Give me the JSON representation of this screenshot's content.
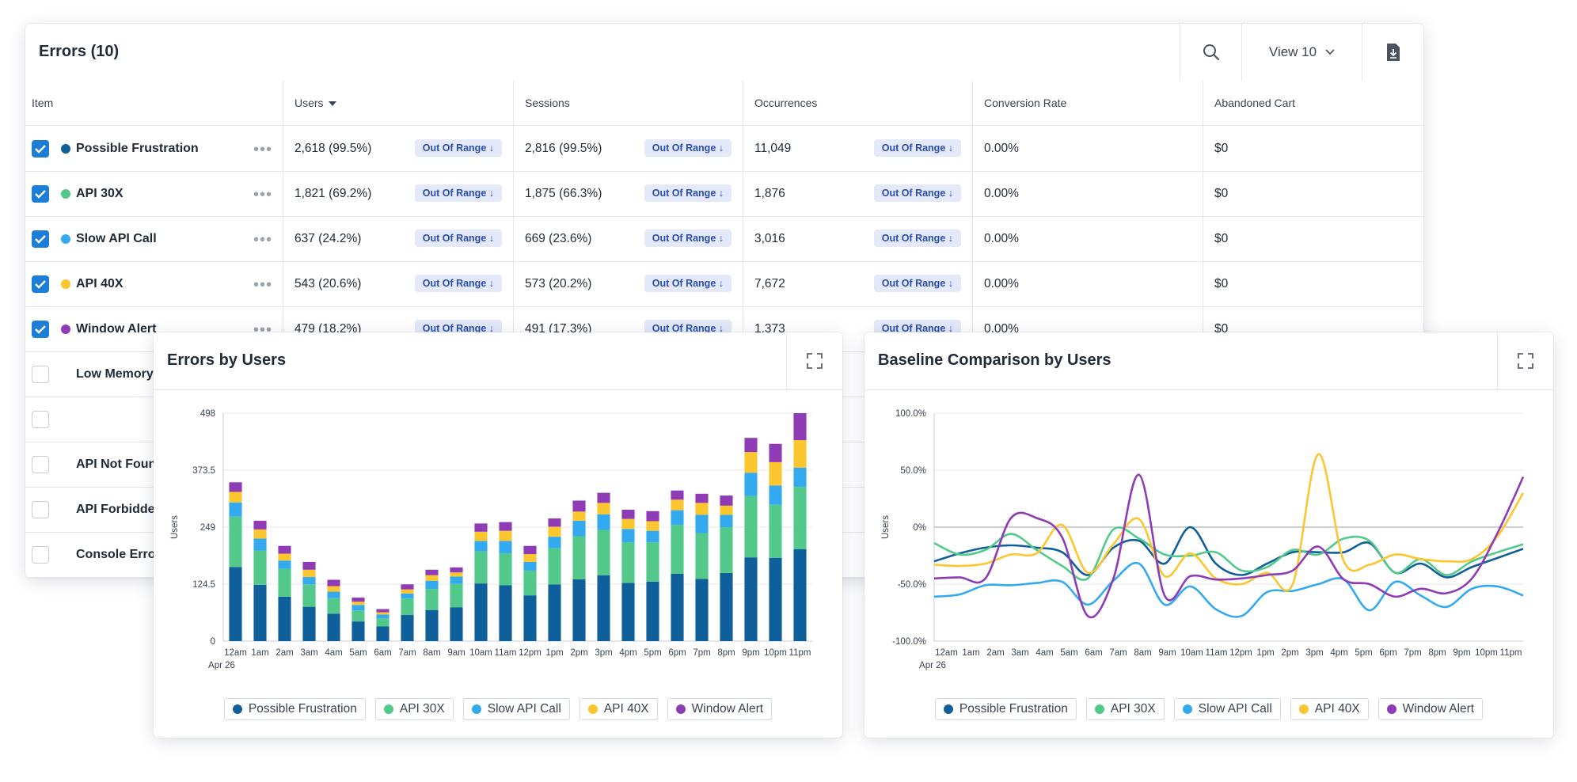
{
  "table": {
    "title": "Errors (10)",
    "view_label": "View 10",
    "columns": [
      "Item",
      "Users",
      "Sessions",
      "Occurrences",
      "Conversion Rate",
      "Abandoned Cart"
    ],
    "badge_label": "Out Of Range ↓",
    "rows": [
      {
        "name": "Possible Frustration",
        "checked": true,
        "color": "#0f5f9b",
        "users": "2,618 (99.5%)",
        "sessions": "2,816 (99.5%)",
        "occurrences": "11,049",
        "conversion": "0.00%",
        "abandoned": "$0"
      },
      {
        "name": "API 30X",
        "checked": true,
        "color": "#52c98a",
        "users": "1,821 (69.2%)",
        "sessions": "1,875 (66.3%)",
        "occurrences": "1,876",
        "conversion": "0.00%",
        "abandoned": "$0"
      },
      {
        "name": "Slow API Call",
        "checked": true,
        "color": "#33aaf0",
        "users": "637 (24.2%)",
        "sessions": "669 (23.6%)",
        "occurrences": "3,016",
        "conversion": "0.00%",
        "abandoned": "$0"
      },
      {
        "name": "API 40X",
        "checked": true,
        "color": "#fbc62e",
        "users": "543 (20.6%)",
        "sessions": "573 (20.2%)",
        "occurrences": "7,672",
        "conversion": "0.00%",
        "abandoned": "$0"
      },
      {
        "name": "Window Alert",
        "checked": true,
        "color": "#8e3bb5",
        "users": "479 (18.2%)",
        "sessions": "491 (17.3%)",
        "occurrences": "1,373",
        "conversion": "0.00%",
        "abandoned": "$0"
      },
      {
        "name": "Low Memory",
        "checked": false
      },
      {
        "name": "",
        "checked": false
      },
      {
        "name": "API Not Foun",
        "checked": false
      },
      {
        "name": "API Forbidde",
        "checked": false
      },
      {
        "name": "Console Error",
        "checked": false
      }
    ]
  },
  "legend": [
    {
      "name": "Possible Frustration",
      "color": "#0f5f9b"
    },
    {
      "name": "API 30X",
      "color": "#52c98a"
    },
    {
      "name": "Slow API Call",
      "color": "#33aaf0"
    },
    {
      "name": "API 40X",
      "color": "#fbc62e"
    },
    {
      "name": "Window Alert",
      "color": "#8e3bb5"
    }
  ],
  "chart_data": [
    {
      "type": "bar",
      "stacked": true,
      "title": "Errors by Users",
      "ylabel": "Users",
      "xlabel": "",
      "date_label": "Apr 26",
      "ylim": [
        0,
        498
      ],
      "yticks": [
        "0",
        "124.5",
        "249",
        "373.5",
        "498"
      ],
      "categories": [
        "12am",
        "1am",
        "2am",
        "3am",
        "4am",
        "5am",
        "6am",
        "7am",
        "8am",
        "9am",
        "10am",
        "11am",
        "12pm",
        "1pm",
        "2pm",
        "3pm",
        "4pm",
        "5pm",
        "6pm",
        "7pm",
        "8pm",
        "9pm",
        "10pm",
        "11pm"
      ],
      "series": [
        {
          "name": "Possible Frustration",
          "color": "#0f5f9b",
          "values": [
            162,
            123,
            97,
            75,
            60,
            43,
            32,
            57,
            68,
            74,
            126,
            122,
            100,
            124,
            135,
            144,
            127,
            130,
            147,
            136,
            149,
            183,
            182,
            201
          ]
        },
        {
          "name": "API 30X",
          "color": "#52c98a",
          "values": [
            110,
            75,
            61,
            49,
            34,
            24,
            18,
            36,
            46,
            51,
            70,
            70,
            54,
            79,
            94,
            99,
            89,
            86,
            107,
            100,
            100,
            134,
            116,
            136
          ]
        },
        {
          "name": "Slow API Call",
          "color": "#33aaf0",
          "values": [
            31,
            26,
            18,
            16,
            14,
            12,
            8,
            11,
            18,
            16,
            23,
            27,
            19,
            25,
            34,
            34,
            29,
            25,
            32,
            40,
            27,
            51,
            42,
            42
          ]
        },
        {
          "name": "API 40X",
          "color": "#fbc62e",
          "values": [
            23,
            20,
            15,
            16,
            12,
            7,
            5,
            9,
            12,
            9,
            20,
            22,
            17,
            22,
            20,
            25,
            22,
            21,
            23,
            26,
            20,
            45,
            51,
            60
          ]
        },
        {
          "name": "Window Alert",
          "color": "#8e3bb5",
          "values": [
            21,
            19,
            17,
            17,
            14,
            9,
            7,
            11,
            12,
            11,
            18,
            19,
            18,
            18,
            24,
            22,
            20,
            22,
            20,
            20,
            22,
            31,
            40,
            59
          ]
        }
      ]
    },
    {
      "type": "line",
      "title": "Baseline Comparison by Users",
      "ylabel": "Users",
      "xlabel": "",
      "date_label": "Apr 26",
      "ylim": [
        -100,
        100
      ],
      "yticks": [
        "-100.0%",
        "-50.0%",
        "0%",
        "50.0%",
        "100.0%"
      ],
      "categories": [
        "12am",
        "1am",
        "2am",
        "3am",
        "4am",
        "5am",
        "6am",
        "7am",
        "8am",
        "9am",
        "10am",
        "11am",
        "12pm",
        "1pm",
        "2pm",
        "3pm",
        "4pm",
        "5pm",
        "6pm",
        "7pm",
        "8pm",
        "9pm",
        "10pm",
        "11pm"
      ],
      "series": [
        {
          "name": "Possible Frustration",
          "color": "#0f5f9b",
          "values": [
            -30,
            -23,
            -18,
            -16,
            -18,
            -22,
            -42,
            -18,
            -12,
            -32,
            0,
            -32,
            -42,
            -32,
            -22,
            -22,
            -22,
            -14,
            -40,
            -32,
            -44,
            -35,
            -27,
            -19
          ]
        },
        {
          "name": "API 30X",
          "color": "#52c98a",
          "values": [
            -14,
            -24,
            -20,
            -6,
            -20,
            -34,
            -45,
            -2,
            -10,
            -24,
            -25,
            -22,
            -38,
            -35,
            -20,
            -24,
            -10,
            -12,
            -40,
            -28,
            -42,
            -30,
            -22,
            -15
          ]
        },
        {
          "name": "Slow API Call",
          "color": "#33aaf0",
          "values": [
            -61,
            -59,
            -51,
            -51,
            -49,
            -48,
            -68,
            -47,
            -32,
            -68,
            -52,
            -72,
            -78,
            -57,
            -56,
            -50,
            -46,
            -73,
            -48,
            -60,
            -70,
            -54,
            -52,
            -60
          ]
        },
        {
          "name": "API 40X",
          "color": "#fbc62e",
          "values": [
            -33,
            -34,
            -32,
            -24,
            -23,
            2,
            -40,
            -15,
            7,
            -43,
            -23,
            -45,
            -50,
            -40,
            -50,
            64,
            -30,
            -33,
            -24,
            -28,
            -30,
            -28,
            -8,
            30
          ]
        },
        {
          "name": "Window Alert",
          "color": "#8e3bb5",
          "values": [
            -45,
            -44,
            -45,
            8,
            8,
            -9,
            -78,
            -45,
            46,
            -60,
            -43,
            -46,
            -45,
            -42,
            -38,
            -17,
            -46,
            -50,
            -61,
            -54,
            -58,
            -45,
            -5,
            44
          ]
        }
      ]
    }
  ]
}
